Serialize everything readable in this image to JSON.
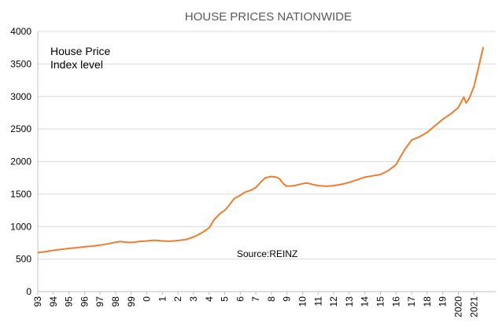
{
  "chart_data": {
    "type": "line",
    "title": "HOUSE PRICES NATIONWIDE",
    "annotation_lines": [
      "House Price",
      "Index level"
    ],
    "source": "Source:REINZ",
    "ylim": [
      0,
      4000
    ],
    "y_ticks": [
      0,
      500,
      1000,
      1500,
      2000,
      2500,
      3000,
      3500,
      4000
    ],
    "x_range": [
      1993,
      2022.4
    ],
    "x_ticks": [
      {
        "x": 1993,
        "label": "93"
      },
      {
        "x": 1994,
        "label": "94"
      },
      {
        "x": 1995,
        "label": "95"
      },
      {
        "x": 1996,
        "label": "96"
      },
      {
        "x": 1997,
        "label": "97"
      },
      {
        "x": 1998,
        "label": "98"
      },
      {
        "x": 1999,
        "label": "99"
      },
      {
        "x": 2000,
        "label": "0"
      },
      {
        "x": 2001,
        "label": "1"
      },
      {
        "x": 2002,
        "label": "2"
      },
      {
        "x": 2003,
        "label": "3"
      },
      {
        "x": 2004,
        "label": "4"
      },
      {
        "x": 2005,
        "label": "5"
      },
      {
        "x": 2006,
        "label": "6"
      },
      {
        "x": 2007,
        "label": "7"
      },
      {
        "x": 2008,
        "label": "8"
      },
      {
        "x": 2009,
        "label": "9"
      },
      {
        "x": 2010,
        "label": "10"
      },
      {
        "x": 2011,
        "label": "11"
      },
      {
        "x": 2012,
        "label": "12"
      },
      {
        "x": 2013,
        "label": "13"
      },
      {
        "x": 2014,
        "label": "14"
      },
      {
        "x": 2015,
        "label": "15"
      },
      {
        "x": 2016,
        "label": "16"
      },
      {
        "x": 2017,
        "label": "17"
      },
      {
        "x": 2018,
        "label": "18"
      },
      {
        "x": 2019,
        "label": "19"
      },
      {
        "x": 2020,
        "label": "2020"
      },
      {
        "x": 2021,
        "label": "2021"
      }
    ],
    "grid": "horizontal",
    "series": [
      {
        "color": "#ED7D31",
        "points": [
          [
            1993.0,
            600
          ],
          [
            1993.5,
            615
          ],
          [
            1994.0,
            635
          ],
          [
            1994.5,
            650
          ],
          [
            1995.0,
            665
          ],
          [
            1995.5,
            675
          ],
          [
            1996.0,
            690
          ],
          [
            1996.5,
            700
          ],
          [
            1997.0,
            715
          ],
          [
            1997.5,
            735
          ],
          [
            1998.0,
            760
          ],
          [
            1998.3,
            770
          ],
          [
            1998.7,
            760
          ],
          [
            1999.0,
            755
          ],
          [
            1999.5,
            770
          ],
          [
            2000.0,
            780
          ],
          [
            2000.5,
            790
          ],
          [
            2001.0,
            780
          ],
          [
            2001.5,
            775
          ],
          [
            2002.0,
            785
          ],
          [
            2002.5,
            800
          ],
          [
            2003.0,
            840
          ],
          [
            2003.5,
            900
          ],
          [
            2004.0,
            980
          ],
          [
            2004.3,
            1100
          ],
          [
            2004.7,
            1200
          ],
          [
            2005.0,
            1250
          ],
          [
            2005.3,
            1330
          ],
          [
            2005.6,
            1430
          ],
          [
            2006.0,
            1480
          ],
          [
            2006.3,
            1530
          ],
          [
            2006.7,
            1560
          ],
          [
            2007.0,
            1600
          ],
          [
            2007.3,
            1680
          ],
          [
            2007.6,
            1750
          ],
          [
            2008.0,
            1770
          ],
          [
            2008.3,
            1760
          ],
          [
            2008.5,
            1740
          ],
          [
            2008.8,
            1650
          ],
          [
            2009.0,
            1620
          ],
          [
            2009.5,
            1630
          ],
          [
            2010.0,
            1660
          ],
          [
            2010.3,
            1670
          ],
          [
            2010.6,
            1650
          ],
          [
            2011.0,
            1630
          ],
          [
            2011.5,
            1620
          ],
          [
            2012.0,
            1630
          ],
          [
            2012.5,
            1650
          ],
          [
            2013.0,
            1680
          ],
          [
            2013.5,
            1720
          ],
          [
            2014.0,
            1760
          ],
          [
            2014.5,
            1780
          ],
          [
            2015.0,
            1800
          ],
          [
            2015.5,
            1860
          ],
          [
            2016.0,
            1950
          ],
          [
            2016.3,
            2080
          ],
          [
            2016.6,
            2200
          ],
          [
            2017.0,
            2330
          ],
          [
            2017.5,
            2380
          ],
          [
            2018.0,
            2450
          ],
          [
            2018.5,
            2550
          ],
          [
            2019.0,
            2650
          ],
          [
            2019.5,
            2730
          ],
          [
            2020.0,
            2830
          ],
          [
            2020.2,
            2920
          ],
          [
            2020.35,
            2990
          ],
          [
            2020.5,
            2900
          ],
          [
            2020.7,
            2970
          ],
          [
            2021.0,
            3150
          ],
          [
            2021.3,
            3450
          ],
          [
            2021.6,
            3760
          ]
        ]
      }
    ]
  }
}
